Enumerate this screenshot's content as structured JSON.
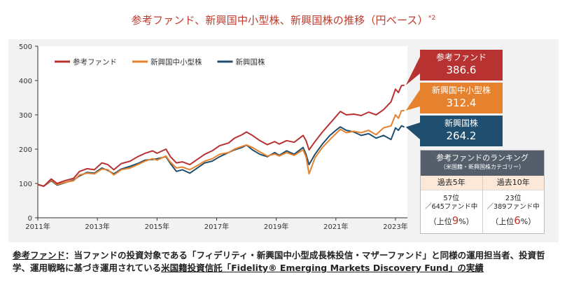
{
  "title": "参考ファンド、新興国中小型株、新興国株の推移（円ベース）",
  "title_sup": "*2",
  "colors": {
    "fund": "#b83232",
    "smallmid": "#e6822e",
    "em": "#1f4e6e",
    "rank_head": "#555f6b",
    "accent": "#c0392b"
  },
  "chart_data": {
    "type": "line",
    "title": "参考ファンド、新興国中小型株、新興国株の推移（円ベース）*2",
    "ylim": [
      0,
      500
    ],
    "yticks": [
      0,
      100,
      200,
      300,
      400,
      500
    ],
    "xlim": [
      2011.0,
      2023.4
    ],
    "xticks": [
      {
        "v": 2011,
        "label": "2011年"
      },
      {
        "v": 2013,
        "label": "2013年"
      },
      {
        "v": 2015,
        "label": "2015年"
      },
      {
        "v": 2017,
        "label": "2017年"
      },
      {
        "v": 2019,
        "label": "2019年"
      },
      {
        "v": 2021,
        "label": "2021年"
      },
      {
        "v": 2023,
        "label": "2023年"
      }
    ],
    "legend": "top-left",
    "series": [
      {
        "name": "参考ファンド",
        "key": "fund",
        "final": "386.6",
        "points": [
          [
            2011.0,
            97
          ],
          [
            2011.2,
            92
          ],
          [
            2011.45,
            113
          ],
          [
            2011.65,
            100
          ],
          [
            2011.9,
            108
          ],
          [
            2012.2,
            115
          ],
          [
            2012.4,
            135
          ],
          [
            2012.65,
            143
          ],
          [
            2012.9,
            140
          ],
          [
            2013.15,
            160
          ],
          [
            2013.35,
            155
          ],
          [
            2013.55,
            140
          ],
          [
            2013.8,
            158
          ],
          [
            2014.1,
            165
          ],
          [
            2014.35,
            178
          ],
          [
            2014.6,
            188
          ],
          [
            2014.85,
            195
          ],
          [
            2015.0,
            188
          ],
          [
            2015.3,
            200
          ],
          [
            2015.45,
            178
          ],
          [
            2015.65,
            160
          ],
          [
            2015.85,
            163
          ],
          [
            2016.1,
            155
          ],
          [
            2016.35,
            170
          ],
          [
            2016.6,
            185
          ],
          [
            2016.85,
            195
          ],
          [
            2017.1,
            210
          ],
          [
            2017.4,
            218
          ],
          [
            2017.6,
            232
          ],
          [
            2017.85,
            242
          ],
          [
            2018.0,
            250
          ],
          [
            2018.2,
            240
          ],
          [
            2018.45,
            225
          ],
          [
            2018.7,
            213
          ],
          [
            2018.95,
            222
          ],
          [
            2019.1,
            215
          ],
          [
            2019.35,
            225
          ],
          [
            2019.6,
            220
          ],
          [
            2019.9,
            240
          ],
          [
            2020.0,
            225
          ],
          [
            2020.1,
            198
          ],
          [
            2020.3,
            222
          ],
          [
            2020.55,
            250
          ],
          [
            2020.8,
            275
          ],
          [
            2021.0,
            295
          ],
          [
            2021.15,
            310
          ],
          [
            2021.35,
            300
          ],
          [
            2021.6,
            302
          ],
          [
            2021.85,
            298
          ],
          [
            2022.1,
            308
          ],
          [
            2022.35,
            300
          ],
          [
            2022.6,
            315
          ],
          [
            2022.85,
            338
          ],
          [
            2023.0,
            375
          ],
          [
            2023.1,
            365
          ],
          [
            2023.2,
            385
          ],
          [
            2023.3,
            386.6
          ]
        ]
      },
      {
        "name": "新興国中小型株",
        "key": "smallmid",
        "final": "312.4",
        "points": [
          [
            2011.0,
            97
          ],
          [
            2011.2,
            92
          ],
          [
            2011.45,
            110
          ],
          [
            2011.65,
            97
          ],
          [
            2011.9,
            103
          ],
          [
            2012.2,
            108
          ],
          [
            2012.4,
            125
          ],
          [
            2012.65,
            130
          ],
          [
            2012.9,
            128
          ],
          [
            2013.15,
            142
          ],
          [
            2013.35,
            140
          ],
          [
            2013.55,
            125
          ],
          [
            2013.8,
            140
          ],
          [
            2014.1,
            145
          ],
          [
            2014.35,
            155
          ],
          [
            2014.6,
            165
          ],
          [
            2014.85,
            172
          ],
          [
            2015.0,
            168
          ],
          [
            2015.3,
            180
          ],
          [
            2015.45,
            162
          ],
          [
            2015.65,
            145
          ],
          [
            2015.85,
            148
          ],
          [
            2016.1,
            140
          ],
          [
            2016.35,
            152
          ],
          [
            2016.6,
            165
          ],
          [
            2016.85,
            172
          ],
          [
            2017.1,
            185
          ],
          [
            2017.4,
            190
          ],
          [
            2017.6,
            200
          ],
          [
            2017.85,
            208
          ],
          [
            2018.0,
            212
          ],
          [
            2018.2,
            205
          ],
          [
            2018.45,
            192
          ],
          [
            2018.7,
            180
          ],
          [
            2018.95,
            186
          ],
          [
            2019.1,
            180
          ],
          [
            2019.35,
            190
          ],
          [
            2019.6,
            182
          ],
          [
            2019.9,
            198
          ],
          [
            2020.0,
            178
          ],
          [
            2020.1,
            128
          ],
          [
            2020.3,
            175
          ],
          [
            2020.55,
            205
          ],
          [
            2020.8,
            228
          ],
          [
            2021.0,
            245
          ],
          [
            2021.15,
            258
          ],
          [
            2021.35,
            248
          ],
          [
            2021.6,
            252
          ],
          [
            2021.85,
            248
          ],
          [
            2022.1,
            255
          ],
          [
            2022.35,
            242
          ],
          [
            2022.6,
            262
          ],
          [
            2022.85,
            268
          ],
          [
            2023.0,
            300
          ],
          [
            2023.1,
            290
          ],
          [
            2023.2,
            312
          ],
          [
            2023.3,
            312.4
          ]
        ]
      },
      {
        "name": "新興国株",
        "key": "em",
        "final": "264.2",
        "points": [
          [
            2011.0,
            97
          ],
          [
            2011.2,
            92
          ],
          [
            2011.45,
            108
          ],
          [
            2011.65,
            95
          ],
          [
            2011.9,
            102
          ],
          [
            2012.2,
            110
          ],
          [
            2012.4,
            122
          ],
          [
            2012.65,
            132
          ],
          [
            2012.9,
            130
          ],
          [
            2013.15,
            145
          ],
          [
            2013.35,
            138
          ],
          [
            2013.55,
            128
          ],
          [
            2013.8,
            142
          ],
          [
            2014.1,
            150
          ],
          [
            2014.35,
            158
          ],
          [
            2014.6,
            168
          ],
          [
            2014.85,
            170
          ],
          [
            2015.0,
            172
          ],
          [
            2015.3,
            178
          ],
          [
            2015.45,
            158
          ],
          [
            2015.65,
            135
          ],
          [
            2015.85,
            140
          ],
          [
            2016.1,
            130
          ],
          [
            2016.35,
            145
          ],
          [
            2016.6,
            160
          ],
          [
            2016.85,
            165
          ],
          [
            2017.1,
            178
          ],
          [
            2017.4,
            190
          ],
          [
            2017.6,
            198
          ],
          [
            2017.85,
            205
          ],
          [
            2018.0,
            212
          ],
          [
            2018.2,
            198
          ],
          [
            2018.45,
            185
          ],
          [
            2018.7,
            178
          ],
          [
            2018.95,
            190
          ],
          [
            2019.1,
            182
          ],
          [
            2019.35,
            195
          ],
          [
            2019.6,
            185
          ],
          [
            2019.9,
            205
          ],
          [
            2020.0,
            185
          ],
          [
            2020.1,
            155
          ],
          [
            2020.3,
            185
          ],
          [
            2020.55,
            215
          ],
          [
            2020.8,
            240
          ],
          [
            2021.0,
            255
          ],
          [
            2021.15,
            265
          ],
          [
            2021.35,
            255
          ],
          [
            2021.6,
            250
          ],
          [
            2021.85,
            240
          ],
          [
            2022.1,
            245
          ],
          [
            2022.35,
            232
          ],
          [
            2022.6,
            240
          ],
          [
            2022.85,
            228
          ],
          [
            2023.0,
            262
          ],
          [
            2023.1,
            255
          ],
          [
            2023.2,
            268
          ],
          [
            2023.3,
            264.2
          ]
        ]
      }
    ]
  },
  "value_boxes": [
    {
      "name": "参考ファンド",
      "value": "386.6"
    },
    {
      "name": "新興国中小型株",
      "value": "312.4"
    },
    {
      "name": "新興国株",
      "value": "264.2"
    }
  ],
  "ranking": {
    "title": "参考ファンドのランキング",
    "subtitle": "（米国籍・新興国株カテゴリー）",
    "cols": [
      {
        "period": "過去5年",
        "rank": "57位",
        "of": "／645ファンド中",
        "top_pre": "（上位",
        "top_pct": "9",
        "top_post": "%）"
      },
      {
        "period": "過去10年",
        "rank": "23位",
        "of": "／389ファンド中",
        "top_pre": "（上位",
        "top_pct": "6",
        "top_post": "%）"
      }
    ]
  },
  "note": {
    "term": "参考ファンド",
    "p1": "：当ファンドの投資対象である「フィデリティ・新興国中小型成長株投信・マザーファンド」と同様の運用担当者、投資哲学、運用戦略に基づき運用されている",
    "link": "米国籍投資信託「Fidelity® Emerging Markets Discovery Fund」の実績"
  }
}
